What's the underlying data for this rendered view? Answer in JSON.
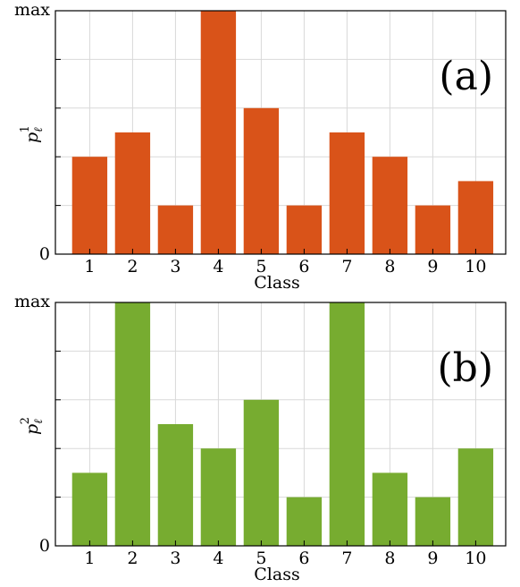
{
  "chart_data": [
    {
      "type": "bar",
      "categories": [
        "1",
        "2",
        "3",
        "4",
        "5",
        "6",
        "7",
        "8",
        "9",
        "10"
      ],
      "series": [
        {
          "values": [
            0.4,
            0.5,
            0.2,
            1.0,
            0.6,
            0.2,
            0.5,
            0.4,
            0.2,
            0.3
          ]
        }
      ],
      "color": "#d95319",
      "xlabel": "Class",
      "ylabel_base": "p",
      "ylabel_sup": "1",
      "ylabel_sub": "ℓ",
      "panel_label": "(a)",
      "y_tick_labels": {
        "bottom": "0",
        "top": "max"
      },
      "ylim": [
        0,
        1
      ],
      "grid": true
    },
    {
      "type": "bar",
      "categories": [
        "1",
        "2",
        "3",
        "4",
        "5",
        "6",
        "7",
        "8",
        "9",
        "10"
      ],
      "series": [
        {
          "values": [
            0.3,
            1.0,
            0.5,
            0.4,
            0.6,
            0.2,
            1.0,
            0.3,
            0.2,
            0.4
          ]
        }
      ],
      "color": "#77ac30",
      "xlabel": "Class",
      "ylabel_base": "p",
      "ylabel_sup": "2",
      "ylabel_sub": "ℓ",
      "panel_label": "(b)",
      "y_tick_labels": {
        "bottom": "0",
        "top": "max"
      },
      "ylim": [
        0,
        1
      ],
      "grid": true
    }
  ]
}
